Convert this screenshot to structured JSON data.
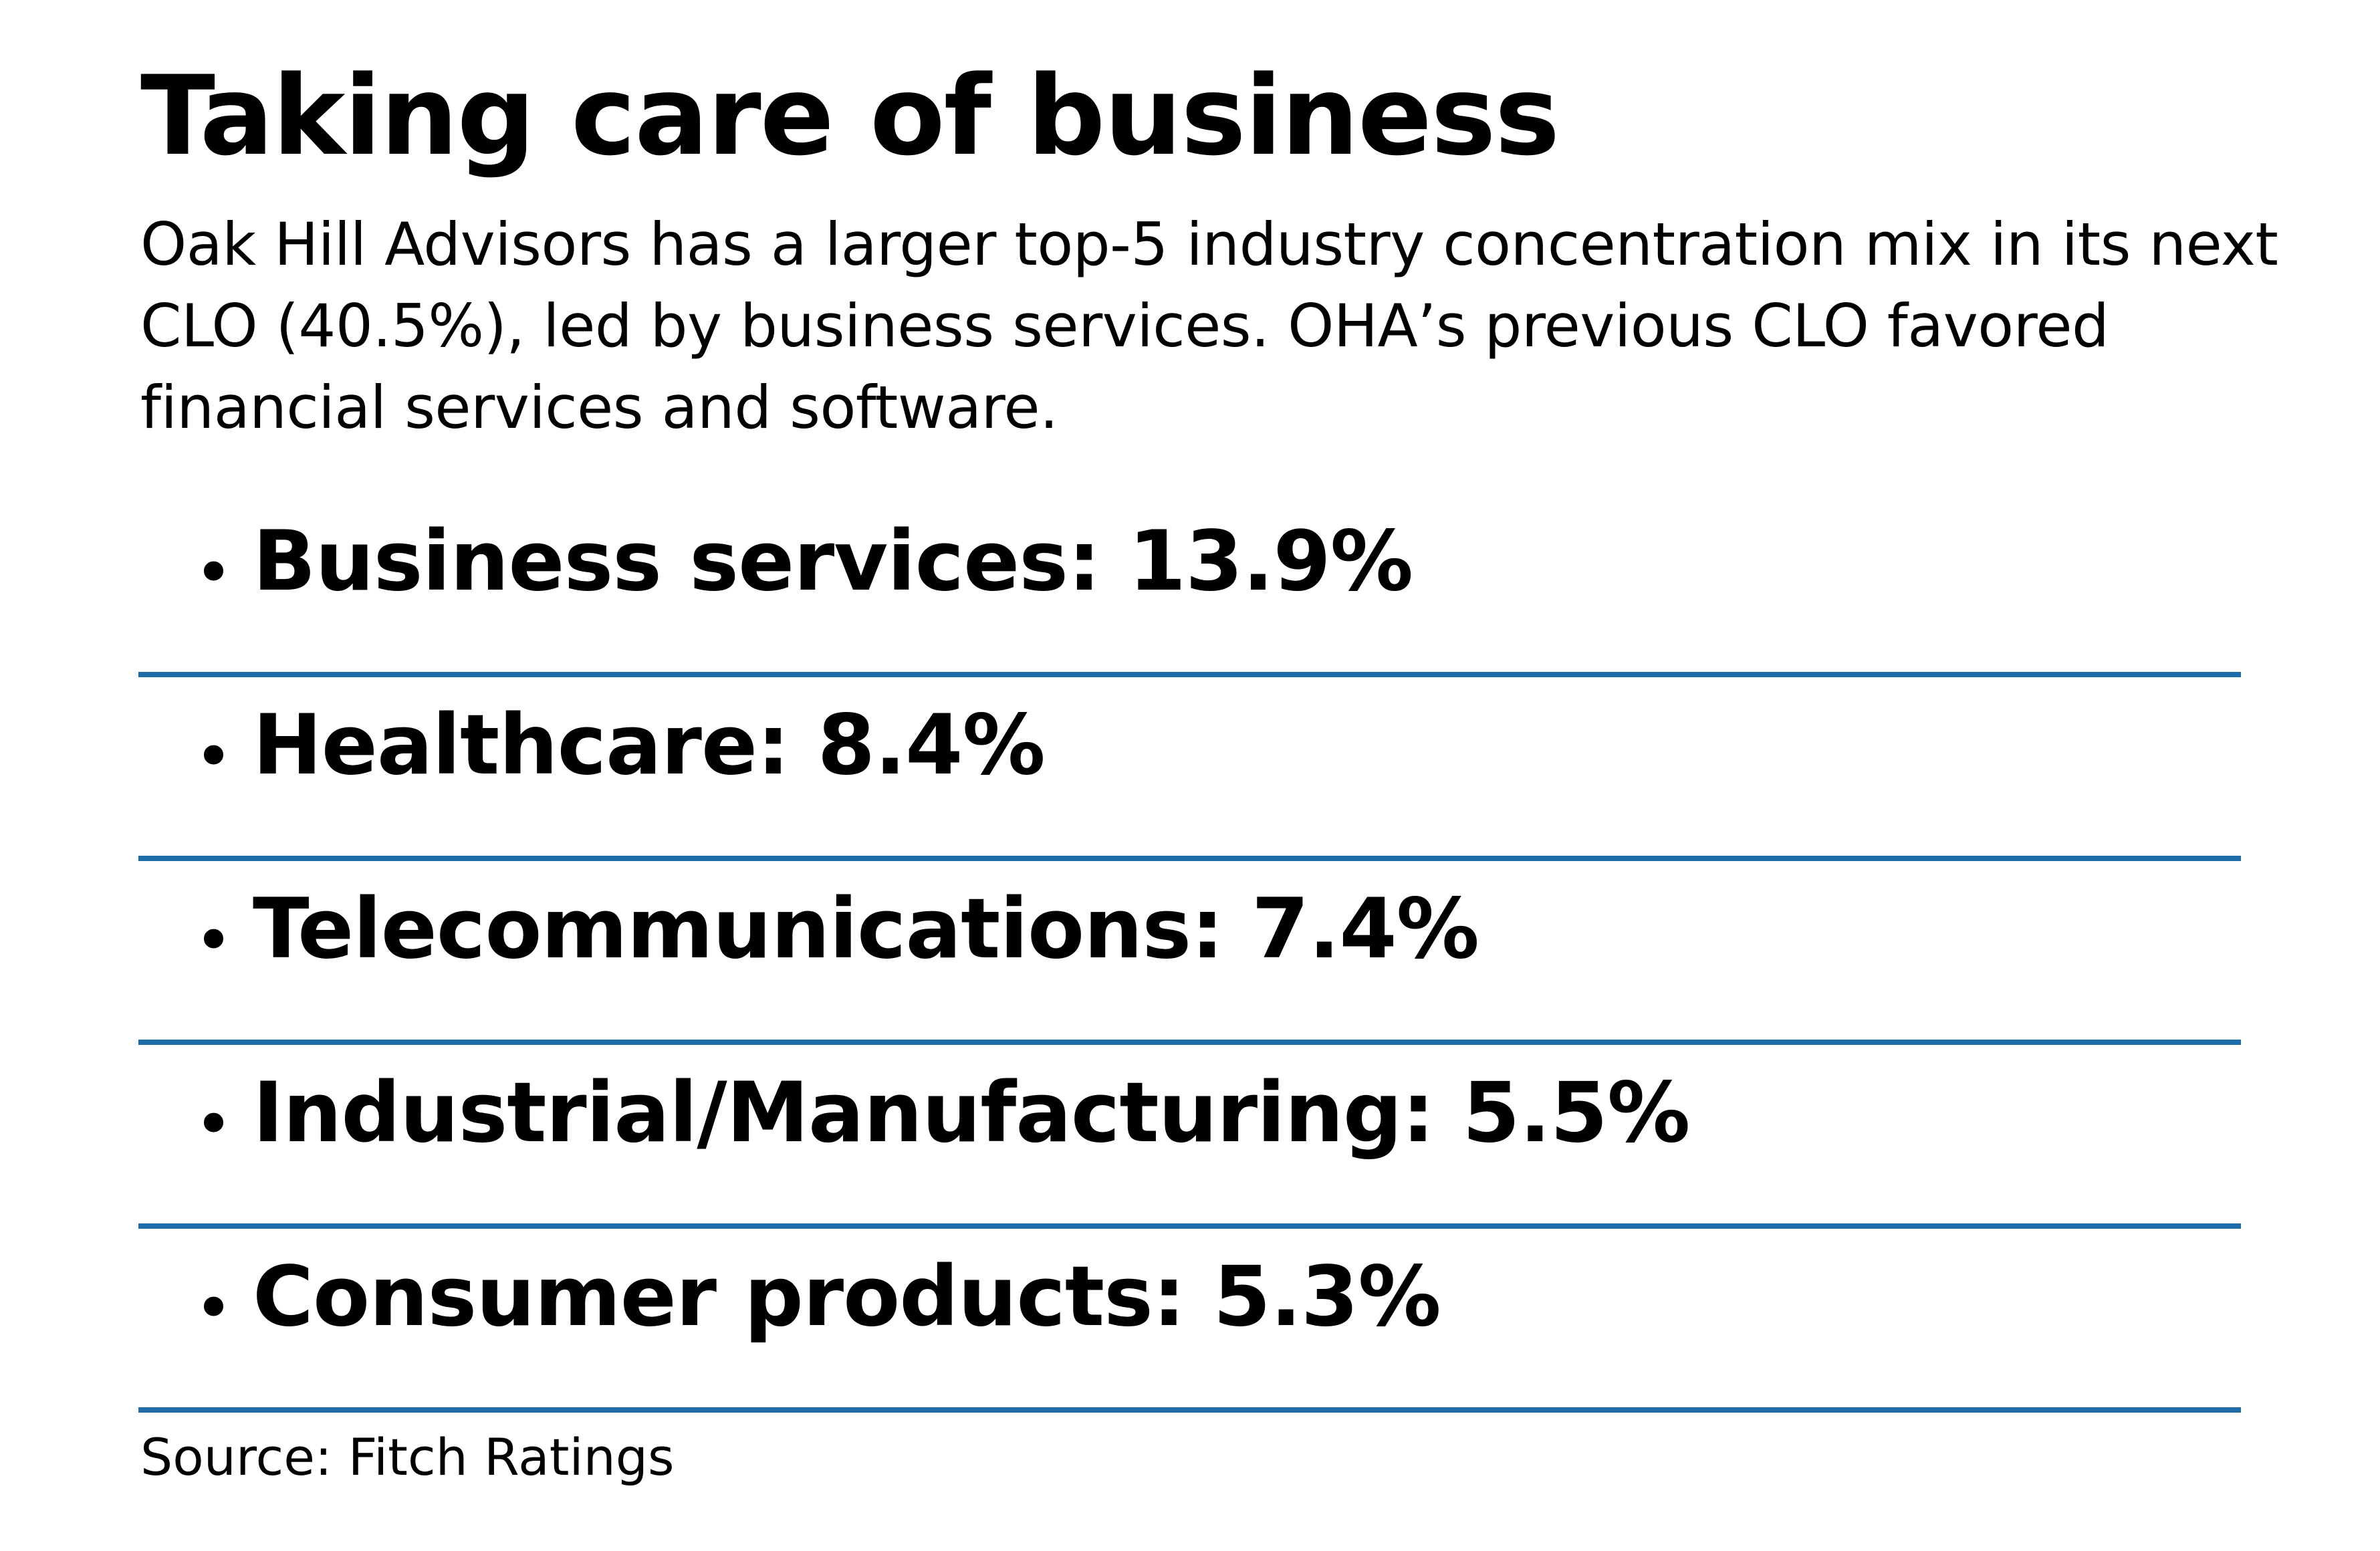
{
  "title": "Taking care of business",
  "subtitle": "Oak Hill Advisors has a larger top-5 industry concentration mix in its next CLO (40.5%), led by business services. OHA’s previous CLO favored financial services and software.",
  "bullet_glyph": "•",
  "items": [
    {
      "label": "Business services: 13.9%"
    },
    {
      "label": "Healthcare: 8.4%"
    },
    {
      "label": "Telecommunications: 7.4%"
    },
    {
      "label": "Industrial/Manufacturing: 5.5%"
    },
    {
      "label": "Consumer products: 5.3%"
    }
  ],
  "source": "Source: Fitch Ratings",
  "colors": {
    "divider": "#1f6da8",
    "text": "#000000",
    "background": "#ffffff"
  }
}
